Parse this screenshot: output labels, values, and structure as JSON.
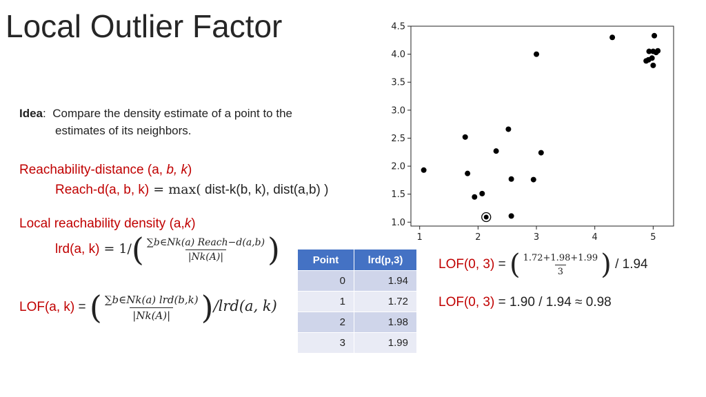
{
  "slide": {
    "title": "Local Outlier Factor",
    "idea_label": "Idea",
    "idea_sep": ":",
    "idea_text_1": "Compare the density estimate of a point to the",
    "idea_text_2": "estimates of its neighbors.",
    "reach_heading": {
      "text": "Reachability-distance (a, ",
      "b": "b,",
      "space": " ",
      "k": "k",
      "close": ")"
    },
    "reach_formula": {
      "lhs": "Reach-d(a, b, k)",
      "eq": " = ",
      "max": "max(",
      "args": " dist-k(b, k), dist(a,b) )"
    },
    "lrd_heading": {
      "text": "Local reachability density (a,",
      "k": "k",
      "close": ")"
    },
    "lrd_formula": {
      "lhs": "lrd(a, k)",
      "eq": " = 1/",
      "num": "∑b∈Nk(a) Reach−d(a,b)",
      "den": "|Nk(A)|"
    },
    "lof_formula": {
      "lhs": "LOF(a, k)",
      "eq": " = ",
      "num": "∑b∈Nk(a) lrd(b,k)",
      "den": "|Nk(A)|",
      "tail": "/lrd(a, k)"
    },
    "lof_calc_1": {
      "lhs": "LOF(0, 3)",
      "eq": " = ",
      "num": "1.72+1.98+1.99",
      "den": "3",
      "tail": " / 1.94"
    },
    "lof_calc_2": {
      "lhs": "LOF(0, 3)",
      "rhs": " = 1.90 / 1.94 ≈ 0.98"
    }
  },
  "table": {
    "headers": [
      "Point",
      "lrd(p,3)"
    ],
    "rows": [
      [
        "0",
        "1.94"
      ],
      [
        "1",
        "1.72"
      ],
      [
        "2",
        "1.98"
      ],
      [
        "3",
        "1.99"
      ]
    ]
  },
  "chart_data": {
    "type": "scatter",
    "xlim": [
      0.85,
      5.35
    ],
    "ylim": [
      0.93,
      4.5
    ],
    "xticks": [
      1,
      2,
      3,
      4,
      5
    ],
    "yticks": [
      1.0,
      1.5,
      2.0,
      2.5,
      3.0,
      3.5,
      4.0,
      4.5
    ],
    "xtick_labels": [
      "1",
      "2",
      "3",
      "4",
      "5"
    ],
    "ytick_labels": [
      "1.0",
      "1.5",
      "2.0",
      "2.5",
      "3.0",
      "3.5",
      "4.0",
      "4.5"
    ],
    "grid": false,
    "points": [
      {
        "x": 1.07,
        "y": 1.93
      },
      {
        "x": 1.78,
        "y": 2.52
      },
      {
        "x": 1.82,
        "y": 1.87
      },
      {
        "x": 1.94,
        "y": 1.45
      },
      {
        "x": 2.07,
        "y": 1.51
      },
      {
        "x": 2.31,
        "y": 2.27
      },
      {
        "x": 2.52,
        "y": 2.66
      },
      {
        "x": 2.57,
        "y": 1.77
      },
      {
        "x": 2.57,
        "y": 1.11
      },
      {
        "x": 2.95,
        "y": 1.76
      },
      {
        "x": 3.0,
        "y": 4.0
      },
      {
        "x": 3.08,
        "y": 2.24
      },
      {
        "x": 4.3,
        "y": 4.3
      },
      {
        "x": 4.88,
        "y": 3.88
      },
      {
        "x": 4.92,
        "y": 3.9
      },
      {
        "x": 4.93,
        "y": 4.05
      },
      {
        "x": 4.98,
        "y": 3.93
      },
      {
        "x": 5.0,
        "y": 3.8
      },
      {
        "x": 5.0,
        "y": 4.05
      },
      {
        "x": 5.02,
        "y": 4.33
      },
      {
        "x": 5.05,
        "y": 4.03
      },
      {
        "x": 5.08,
        "y": 4.06
      }
    ],
    "highlighted_point": {
      "x": 2.14,
      "y": 1.09
    }
  }
}
